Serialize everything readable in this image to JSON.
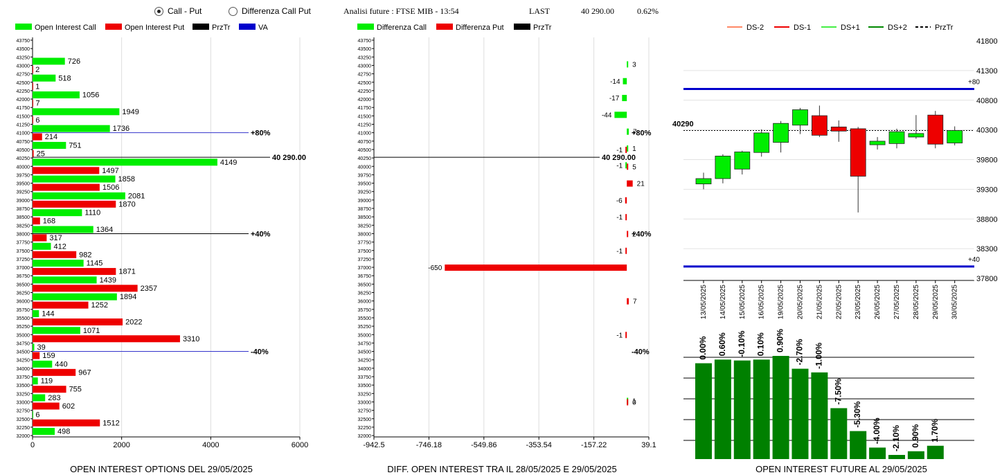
{
  "header": {
    "radio_call_put": "Call - Put",
    "radio_diff": "Differenza Call Put",
    "title": "Analisi future : FTSE MIB - 13:54",
    "last_label": "LAST",
    "last_value": "40 290.00",
    "last_change": "0.62%"
  },
  "strikes": [
    "43750",
    "43500",
    "43250",
    "43000",
    "42750",
    "42500",
    "42250",
    "42000",
    "41750",
    "41500",
    "41250",
    "41000",
    "40750",
    "40500",
    "40250",
    "40000",
    "39750",
    "39500",
    "39250",
    "39000",
    "38750",
    "38500",
    "38250",
    "38000",
    "37750",
    "37500",
    "37250",
    "37000",
    "36750",
    "36500",
    "36250",
    "36000",
    "35750",
    "35500",
    "35250",
    "35000",
    "34750",
    "34500",
    "34250",
    "34000",
    "33750",
    "33500",
    "33250",
    "33000",
    "32750",
    "32500",
    "32250",
    "32000"
  ],
  "chart_data": [
    {
      "type": "bar",
      "orientation": "horizontal",
      "title": "OPEN INTEREST OPTIONS DEL 29/05/2025",
      "legend": [
        "Open Interest Call",
        "Open Interest Put",
        "PrzTr",
        "VA"
      ],
      "legend_colors": [
        "#00ee00",
        "#ee0000",
        "#000000",
        "#0000cc"
      ],
      "categories_ref": "strikes",
      "xlim": [
        0,
        6000
      ],
      "xticks": [
        "0",
        "2000",
        "4000",
        "6000"
      ],
      "series": [
        {
          "name": "Open Interest Call",
          "values": [
            null,
            null,
            null,
            726,
            null,
            518,
            null,
            1056,
            null,
            1949,
            null,
            1736,
            null,
            751,
            null,
            4149,
            null,
            1858,
            null,
            2081,
            null,
            1110,
            null,
            1364,
            null,
            412,
            null,
            1145,
            null,
            1439,
            null,
            1894,
            null,
            144,
            null,
            1071,
            null,
            39,
            null,
            440,
            null,
            119,
            null,
            283,
            null,
            6,
            null,
            498
          ]
        },
        {
          "name": "Open Interest Put",
          "values": [
            null,
            null,
            null,
            2,
            null,
            1,
            null,
            7,
            null,
            6,
            null,
            214,
            null,
            25,
            null,
            1497,
            null,
            1506,
            null,
            1870,
            null,
            168,
            null,
            317,
            null,
            982,
            null,
            1871,
            null,
            2357,
            null,
            1252,
            null,
            2022,
            null,
            3310,
            null,
            159,
            null,
            967,
            null,
            755,
            null,
            602,
            null,
            1512,
            null,
            null
          ]
        }
      ],
      "lines": [
        {
          "strike": "41000",
          "label": "+80%",
          "color": "#3333cc"
        },
        {
          "strike": "40250",
          "label": "40 290.00",
          "color": "#000000"
        },
        {
          "strike": "38000",
          "label": "+40%",
          "color": "#000000"
        },
        {
          "strike": "34500",
          "label": "-40%",
          "color": "#3333cc"
        }
      ]
    },
    {
      "type": "bar",
      "orientation": "horizontal",
      "title": "DIFF. OPEN INTEREST TRA IL 28/05/2025 E 29/05/2025",
      "legend": [
        "Differenza Call",
        "Differenza Put",
        "PrzTr"
      ],
      "legend_colors": [
        "#00ee00",
        "#ee0000",
        "#000000"
      ],
      "categories_ref": "strikes",
      "xlim": [
        -942.5,
        39.1
      ],
      "xticks": [
        "-942.5",
        "-746.18",
        "-549.86",
        "-353.54",
        "-157.22",
        "39.1"
      ],
      "series": [
        {
          "name": "Differenza Call",
          "values": [
            null,
            null,
            null,
            3,
            null,
            -14,
            null,
            -17,
            null,
            -44,
            null,
            7,
            null,
            1,
            null,
            -1,
            null,
            null,
            null,
            null,
            null,
            null,
            null,
            null,
            null,
            null,
            null,
            null,
            null,
            null,
            null,
            null,
            null,
            null,
            null,
            null,
            null,
            null,
            null,
            null,
            null,
            null,
            null,
            1,
            null,
            null,
            null,
            null
          ]
        },
        {
          "name": "Differenza Put",
          "values": [
            null,
            null,
            null,
            null,
            null,
            null,
            null,
            null,
            null,
            null,
            null,
            null,
            null,
            -1,
            null,
            5,
            null,
            21,
            null,
            -6,
            null,
            -1,
            null,
            2,
            null,
            -1,
            null,
            -650,
            null,
            null,
            null,
            7,
            null,
            null,
            null,
            -1,
            null,
            null,
            null,
            null,
            null,
            null,
            null,
            0,
            null,
            null,
            null,
            null
          ]
        }
      ],
      "lines": [
        {
          "strike": "41000",
          "label": "+80%"
        },
        {
          "strike": "40250",
          "label": "40 290.00"
        },
        {
          "strike": "38000",
          "label": "+40%"
        },
        {
          "strike": "34500",
          "label": "-40%"
        }
      ]
    },
    {
      "type": "candlestick",
      "legend": [
        "DS-2",
        "DS-1",
        "DS+1",
        "DS+2",
        "PrzTr"
      ],
      "legend_colors": [
        "#ff8866",
        "#ee0000",
        "#44ee44",
        "#008800",
        "#000000"
      ],
      "ylim": [
        37800,
        41800
      ],
      "yticks": [
        "41800",
        "41300",
        "40800",
        "40300",
        "39800",
        "39300",
        "38800",
        "38300",
        "37800"
      ],
      "price_label": "40290",
      "price": 40290,
      "hlines": [
        {
          "label": "+80",
          "value": 40990
        },
        {
          "label": "+40",
          "value": 38000
        }
      ],
      "dates": [
        "13/05/2025",
        "14/05/2025",
        "15/05/2025",
        "16/05/2025",
        "19/05/2025",
        "20/05/2025",
        "21/05/2025",
        "22/05/2025",
        "23/05/2025",
        "26/05/2025",
        "27/05/2025",
        "28/05/2025",
        "29/05/2025",
        "30/05/2025"
      ],
      "ohlc": [
        [
          39390,
          39580,
          39300,
          39480
        ],
        [
          39480,
          39890,
          39400,
          39860
        ],
        [
          39640,
          39950,
          39550,
          39930
        ],
        [
          39920,
          40310,
          39850,
          40250
        ],
        [
          40090,
          40450,
          39920,
          40410
        ],
        [
          40380,
          40670,
          40230,
          40640
        ],
        [
          40540,
          40710,
          40180,
          40210
        ],
        [
          40350,
          40460,
          40100,
          40280
        ],
        [
          40320,
          40350,
          38910,
          39520
        ],
        [
          40050,
          40180,
          39970,
          40110
        ],
        [
          40070,
          40320,
          39990,
          40270
        ],
        [
          40180,
          40550,
          40150,
          40240
        ],
        [
          40550,
          40620,
          39990,
          40060
        ],
        [
          40080,
          40360,
          40040,
          40290
        ]
      ]
    },
    {
      "type": "bar",
      "title": "OPEN INTEREST FUTURE AL 29/05/2025",
      "categories_ref": "chart_data.2.dates",
      "labels": [
        "0.00%",
        "0.60%",
        "-0.10%",
        "0.10%",
        "0.90%",
        "-2.70%",
        "-1.00%",
        "-7.50%",
        "-5.30%",
        "-4.00%",
        "-2.10%",
        "0.90%",
        "1.70%"
      ],
      "values": [
        100,
        104,
        103,
        104,
        108,
        94,
        90,
        51,
        26,
        8,
        0,
        4,
        10
      ]
    }
  ]
}
